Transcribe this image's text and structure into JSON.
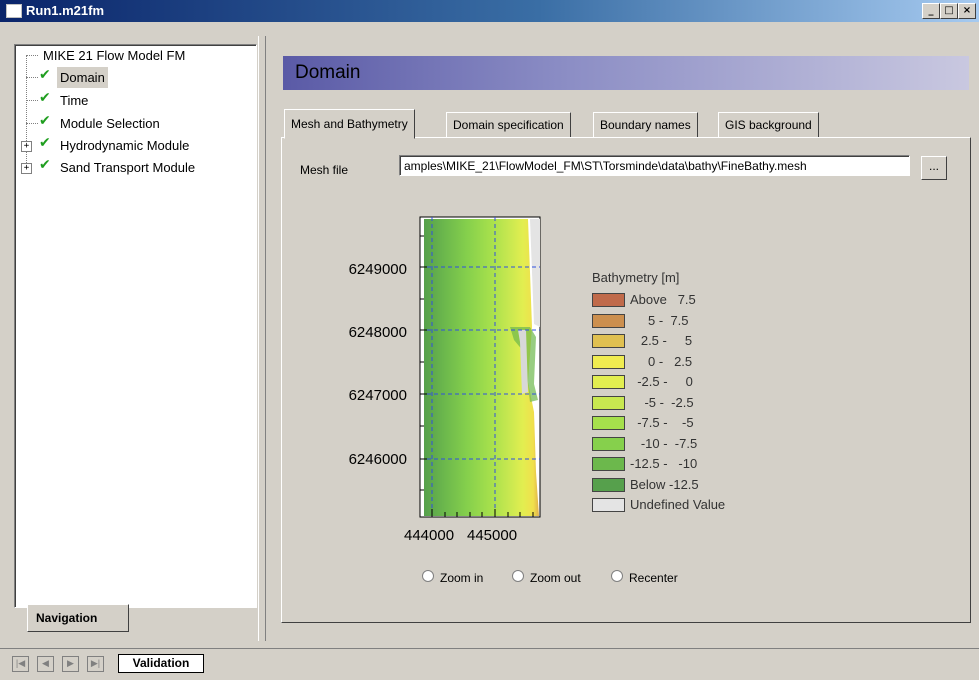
{
  "window": {
    "title": "Run1.m21fm",
    "buttons": {
      "minimize": "_",
      "maximize": "□",
      "close": "×"
    }
  },
  "navigation": {
    "tab_label": "Navigation",
    "tree": [
      {
        "label": "MIKE 21 Flow Model FM",
        "checked": false,
        "expandable": false,
        "selected": false
      },
      {
        "label": "Domain",
        "checked": true,
        "expandable": false,
        "selected": true
      },
      {
        "label": "Time",
        "checked": true,
        "expandable": false,
        "selected": false
      },
      {
        "label": "Module Selection",
        "checked": true,
        "expandable": false,
        "selected": false
      },
      {
        "label": "Hydrodynamic Module",
        "checked": true,
        "expandable": true,
        "selected": false
      },
      {
        "label": "Sand Transport Module",
        "checked": true,
        "expandable": true,
        "selected": false
      }
    ]
  },
  "page": {
    "title": "Domain",
    "tabs": [
      "Mesh and Bathymetry",
      "Domain specification",
      "Boundary names",
      "GIS background"
    ],
    "active_tab": 0,
    "mesh_file_label": "Mesh file",
    "mesh_file_value": "amples\\MIKE_21\\FlowModel_FM\\ST\\Torsminde\\data\\bathy\\FineBathy.mesh",
    "browse_label": "...",
    "radio_options": [
      "Zoom in",
      "Zoom out",
      "Recenter"
    ]
  },
  "bathymetry": {
    "y_ticks": [
      "6249000",
      "6248000",
      "6247000",
      "6246000"
    ],
    "x_ticks": [
      "444000",
      "445000"
    ],
    "legend_title": "Bathymetry [m]",
    "legend": [
      {
        "label": "Above   7.5",
        "color": "#c06a4a"
      },
      {
        "label": "     5 -  7.5",
        "color": "#cc8f4e"
      },
      {
        "label": "   2.5 -     5",
        "color": "#e0c050"
      },
      {
        "label": "     0 -   2.5",
        "color": "#f0ec50"
      },
      {
        "label": "  -2.5 -     0",
        "color": "#e2ee50"
      },
      {
        "label": "    -5 -  -2.5",
        "color": "#c8e850"
      },
      {
        "label": "  -7.5 -    -5",
        "color": "#a6e04c"
      },
      {
        "label": "   -10 -  -7.5",
        "color": "#86d04c"
      },
      {
        "label": "-12.5 -   -10",
        "color": "#6cb84c"
      },
      {
        "label": "Below -12.5",
        "color": "#56a04c"
      },
      {
        "label": "Undefined Value",
        "color": "#e4e4e4"
      }
    ]
  },
  "bottom": {
    "tab_label": "Validation",
    "nav_buttons": [
      "|◀",
      "◀",
      "▶",
      "▶|"
    ]
  }
}
